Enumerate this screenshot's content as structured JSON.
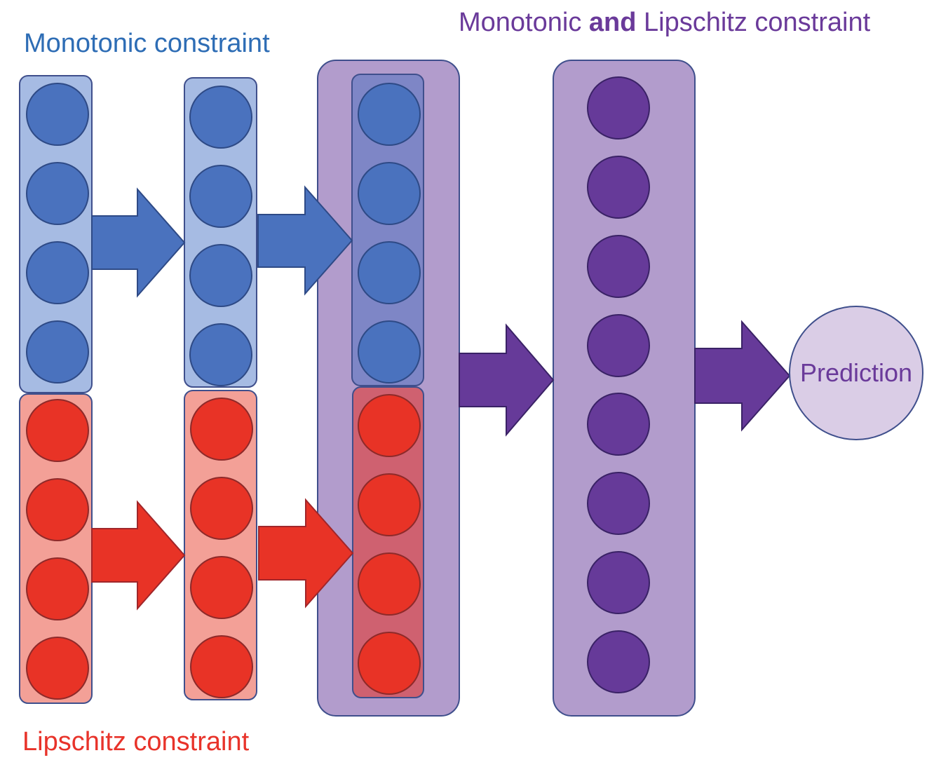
{
  "labels": {
    "monotonic": "Monotonic constraint",
    "lipschitz": "Lipschitz constraint",
    "combined_prefix": "Monotonic ",
    "combined_bold": "and",
    "combined_suffix": " Lipschitz constraint",
    "prediction": "Prediction"
  },
  "colors": {
    "blue_label": "#2E6DB5",
    "red_label": "#E8332A",
    "purple_label": "#6A3A9A",
    "blue_node": "#4A72BE",
    "blue_box": "#A6BBE3",
    "red_node": "#E83326",
    "red_box": "#F3A097",
    "purple_node": "#663A99",
    "purple_box": "#B29CCC",
    "prediction_fill": "#DACDE6"
  },
  "structure": {
    "blue_layers": 3,
    "red_layers": 3,
    "nodes_per_branch_layer": 4,
    "combined_layer_nodes": 8
  }
}
